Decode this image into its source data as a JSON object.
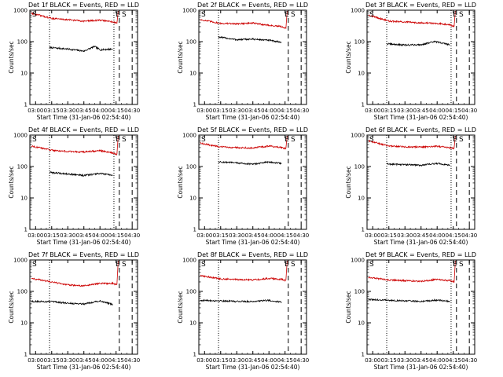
{
  "figure": {
    "panels": [
      {
        "title": "Det 1f BLACK = Events, RED = LLD"
      },
      {
        "title": "Det 2f BLACK = Events, RED = LLD"
      },
      {
        "title": "Det 3f BLACK = Events, RED = LLD"
      },
      {
        "title": "Det 4f BLACK = Events, RED = LLD"
      },
      {
        "title": "Det 5f BLACK = Events, RED = LLD"
      },
      {
        "title": "Det 6f BLACK = Events, RED = LLD"
      },
      {
        "title": "Det 7f BLACK = Events, RED = LLD"
      },
      {
        "title": "Det 8f BLACK = Events, RED = LLD"
      },
      {
        "title": "Det 9f BLACK = Events, RED = LLD"
      }
    ],
    "ylabel": "Counts/sec",
    "xlabel": "Start Time (31-Jan-06 02:54:40)",
    "yticks": [
      "1",
      "10",
      "100",
      "1000"
    ],
    "xticks": [
      "03:00",
      "03:15",
      "03:30",
      "03:45",
      "04:00",
      "04:15",
      "04:30"
    ],
    "markers": {
      "start": "S",
      "end": "E"
    },
    "colors": {
      "events": "#000000",
      "lld": "#cc0000"
    }
  },
  "chart_data": [
    {
      "type": "line",
      "title": "Det 1f BLACK = Events, RED = LLD",
      "xlabel": "Start Time (31-Jan-06 02:54:40)",
      "ylabel": "Counts/sec",
      "yscale": "log",
      "ylim": [
        1,
        1000
      ],
      "xlim": [
        "02:54:40",
        "04:35"
      ],
      "x": [
        "03:15",
        "03:30",
        "03:45",
        "04:00",
        "04:15"
      ],
      "series": [
        {
          "name": "Events",
          "color": "#000000",
          "x": [
            "03:13",
            "03:30",
            "03:45",
            "03:55",
            "04:00",
            "04:12"
          ],
          "values": [
            65,
            58,
            50,
            70,
            55,
            58
          ]
        },
        {
          "name": "LLD",
          "color": "#cc0000",
          "x": [
            "02:56",
            "03:15",
            "03:30",
            "03:45",
            "04:00",
            "04:12",
            "04:16",
            "04:17"
          ],
          "values": [
            800,
            550,
            500,
            450,
            480,
            430,
            380,
            950
          ]
        }
      ],
      "vlines": [
        "03:13",
        "04:13",
        "04:18",
        "04:30"
      ]
    },
    {
      "type": "line",
      "title": "Det 2f BLACK = Events, RED = LLD",
      "xlabel": "Start Time (31-Jan-06 02:54:40)",
      "ylabel": "Counts/sec",
      "yscale": "log",
      "ylim": [
        1,
        1000
      ],
      "xlim": [
        "02:54:40",
        "04:35"
      ],
      "series": [
        {
          "name": "Events",
          "color": "#000000",
          "x": [
            "03:13",
            "03:30",
            "03:45",
            "04:00",
            "04:12"
          ],
          "values": [
            140,
            115,
            120,
            110,
            95
          ]
        },
        {
          "name": "LLD",
          "color": "#cc0000",
          "x": [
            "02:56",
            "03:15",
            "03:30",
            "03:45",
            "04:00",
            "04:12",
            "04:16",
            "04:17"
          ],
          "values": [
            500,
            380,
            370,
            390,
            330,
            300,
            260,
            950
          ]
        }
      ],
      "vlines": [
        "03:13",
        "04:18",
        "04:30"
      ]
    },
    {
      "type": "line",
      "title": "Det 3f BLACK = Events, RED = LLD",
      "xlabel": "Start Time (31-Jan-06 02:54:40)",
      "ylabel": "Counts/sec",
      "yscale": "log",
      "ylim": [
        1,
        1000
      ],
      "xlim": [
        "02:54:40",
        "04:35"
      ],
      "series": [
        {
          "name": "Events",
          "color": "#000000",
          "x": [
            "03:13",
            "03:30",
            "03:45",
            "03:58",
            "04:12"
          ],
          "values": [
            85,
            78,
            80,
            100,
            80
          ]
        },
        {
          "name": "LLD",
          "color": "#cc0000",
          "x": [
            "02:56",
            "03:15",
            "03:30",
            "03:45",
            "04:00",
            "04:12",
            "04:16",
            "04:17"
          ],
          "values": [
            700,
            450,
            420,
            400,
            380,
            350,
            300,
            950
          ]
        }
      ],
      "vlines": [
        "03:13",
        "04:13",
        "04:18",
        "04:30"
      ]
    },
    {
      "type": "line",
      "title": "Det 4f BLACK = Events, RED = LLD",
      "xlabel": "Start Time (31-Jan-06 02:54:40)",
      "ylabel": "Counts/sec",
      "yscale": "log",
      "ylim": [
        1,
        1000
      ],
      "xlim": [
        "02:54:40",
        "04:35"
      ],
      "series": [
        {
          "name": "Events",
          "color": "#000000",
          "x": [
            "03:13",
            "03:30",
            "03:45",
            "04:00",
            "04:12"
          ],
          "values": [
            65,
            58,
            52,
            60,
            52
          ]
        },
        {
          "name": "LLD",
          "color": "#cc0000",
          "x": [
            "02:56",
            "03:15",
            "03:30",
            "03:45",
            "04:00",
            "04:12",
            "04:16",
            "04:17"
          ],
          "values": [
            450,
            330,
            300,
            290,
            320,
            270,
            240,
            950
          ]
        }
      ],
      "vlines": [
        "03:13",
        "04:13",
        "04:18",
        "04:30"
      ]
    },
    {
      "type": "line",
      "title": "Det 5f BLACK = Events, RED = LLD",
      "xlabel": "Start Time (31-Jan-06 02:54:40)",
      "ylabel": "Counts/sec",
      "yscale": "log",
      "ylim": [
        1,
        1000
      ],
      "xlim": [
        "02:54:40",
        "04:35"
      ],
      "series": [
        {
          "name": "Events",
          "color": "#000000",
          "x": [
            "03:13",
            "03:30",
            "03:45",
            "04:00",
            "04:12"
          ],
          "values": [
            140,
            130,
            118,
            140,
            125
          ]
        },
        {
          "name": "LLD",
          "color": "#cc0000",
          "x": [
            "02:56",
            "03:15",
            "03:30",
            "03:45",
            "04:00",
            "04:12",
            "04:16",
            "04:17"
          ],
          "values": [
            550,
            420,
            400,
            390,
            450,
            400,
            370,
            950
          ]
        }
      ],
      "vlines": [
        "03:13",
        "04:18",
        "04:30"
      ]
    },
    {
      "type": "line",
      "title": "Det 6f BLACK = Events, RED = LLD",
      "xlabel": "Start Time (31-Jan-06 02:54:40)",
      "ylabel": "Counts/sec",
      "yscale": "log",
      "ylim": [
        1,
        1000
      ],
      "xlim": [
        "02:54:40",
        "04:35"
      ],
      "series": [
        {
          "name": "Events",
          "color": "#000000",
          "x": [
            "03:13",
            "03:30",
            "03:45",
            "04:00",
            "04:12"
          ],
          "values": [
            120,
            115,
            110,
            125,
            110
          ]
        },
        {
          "name": "LLD",
          "color": "#cc0000",
          "x": [
            "02:56",
            "03:15",
            "03:30",
            "03:45",
            "04:00",
            "04:12",
            "04:16",
            "04:17"
          ],
          "values": [
            650,
            450,
            420,
            420,
            440,
            400,
            370,
            950
          ]
        }
      ],
      "vlines": [
        "03:13",
        "04:13",
        "04:18",
        "04:30"
      ]
    },
    {
      "type": "line",
      "title": "Det 7f BLACK = Events, RED = LLD",
      "xlabel": "Start Time (31-Jan-06 02:54:40)",
      "ylabel": "Counts/sec",
      "yscale": "log",
      "ylim": [
        1,
        1000
      ],
      "xlim": [
        "02:54:40",
        "04:35"
      ],
      "series": [
        {
          "name": "Events",
          "color": "#000000",
          "x": [
            "02:56",
            "03:15",
            "03:30",
            "03:45",
            "04:00",
            "04:12"
          ],
          "values": [
            48,
            47,
            42,
            40,
            50,
            38
          ]
        },
        {
          "name": "LLD",
          "color": "#cc0000",
          "x": [
            "02:56",
            "03:15",
            "03:30",
            "03:45",
            "04:00",
            "04:12",
            "04:16",
            "04:17"
          ],
          "values": [
            260,
            200,
            160,
            150,
            180,
            180,
            160,
            950
          ]
        }
      ],
      "vlines": [
        "03:13",
        "04:18",
        "04:30"
      ]
    },
    {
      "type": "line",
      "title": "Det 8f BLACK = Events, RED = LLD",
      "xlabel": "Start Time (31-Jan-06 02:54:40)",
      "ylabel": "Counts/sec",
      "yscale": "log",
      "ylim": [
        1,
        1000
      ],
      "xlim": [
        "02:54:40",
        "04:35"
      ],
      "series": [
        {
          "name": "Events",
          "color": "#000000",
          "x": [
            "02:56",
            "03:15",
            "03:30",
            "03:45",
            "04:00",
            "04:12"
          ],
          "values": [
            52,
            50,
            48,
            48,
            52,
            45
          ]
        },
        {
          "name": "LLD",
          "color": "#cc0000",
          "x": [
            "02:56",
            "03:15",
            "03:30",
            "03:45",
            "04:00",
            "04:12",
            "04:16",
            "04:17"
          ],
          "values": [
            320,
            250,
            240,
            230,
            260,
            240,
            220,
            950
          ]
        }
      ],
      "vlines": [
        "03:13",
        "04:18",
        "04:30"
      ]
    },
    {
      "type": "line",
      "title": "Det 9f BLACK = Events, RED = LLD",
      "xlabel": "Start Time (31-Jan-06 02:54:40)",
      "ylabel": "Counts/sec",
      "yscale": "log",
      "ylim": [
        1,
        1000
      ],
      "xlim": [
        "02:54:40",
        "04:35"
      ],
      "series": [
        {
          "name": "Events",
          "color": "#000000",
          "x": [
            "02:56",
            "03:15",
            "03:30",
            "03:45",
            "04:00",
            "04:12"
          ],
          "values": [
            55,
            52,
            50,
            48,
            53,
            48
          ]
        },
        {
          "name": "LLD",
          "color": "#cc0000",
          "x": [
            "02:56",
            "03:15",
            "03:30",
            "03:45",
            "04:00",
            "04:12",
            "04:16",
            "04:17"
          ],
          "values": [
            280,
            230,
            220,
            210,
            240,
            220,
            200,
            950
          ]
        }
      ],
      "vlines": [
        "03:13",
        "04:13",
        "04:18",
        "04:30"
      ]
    }
  ]
}
